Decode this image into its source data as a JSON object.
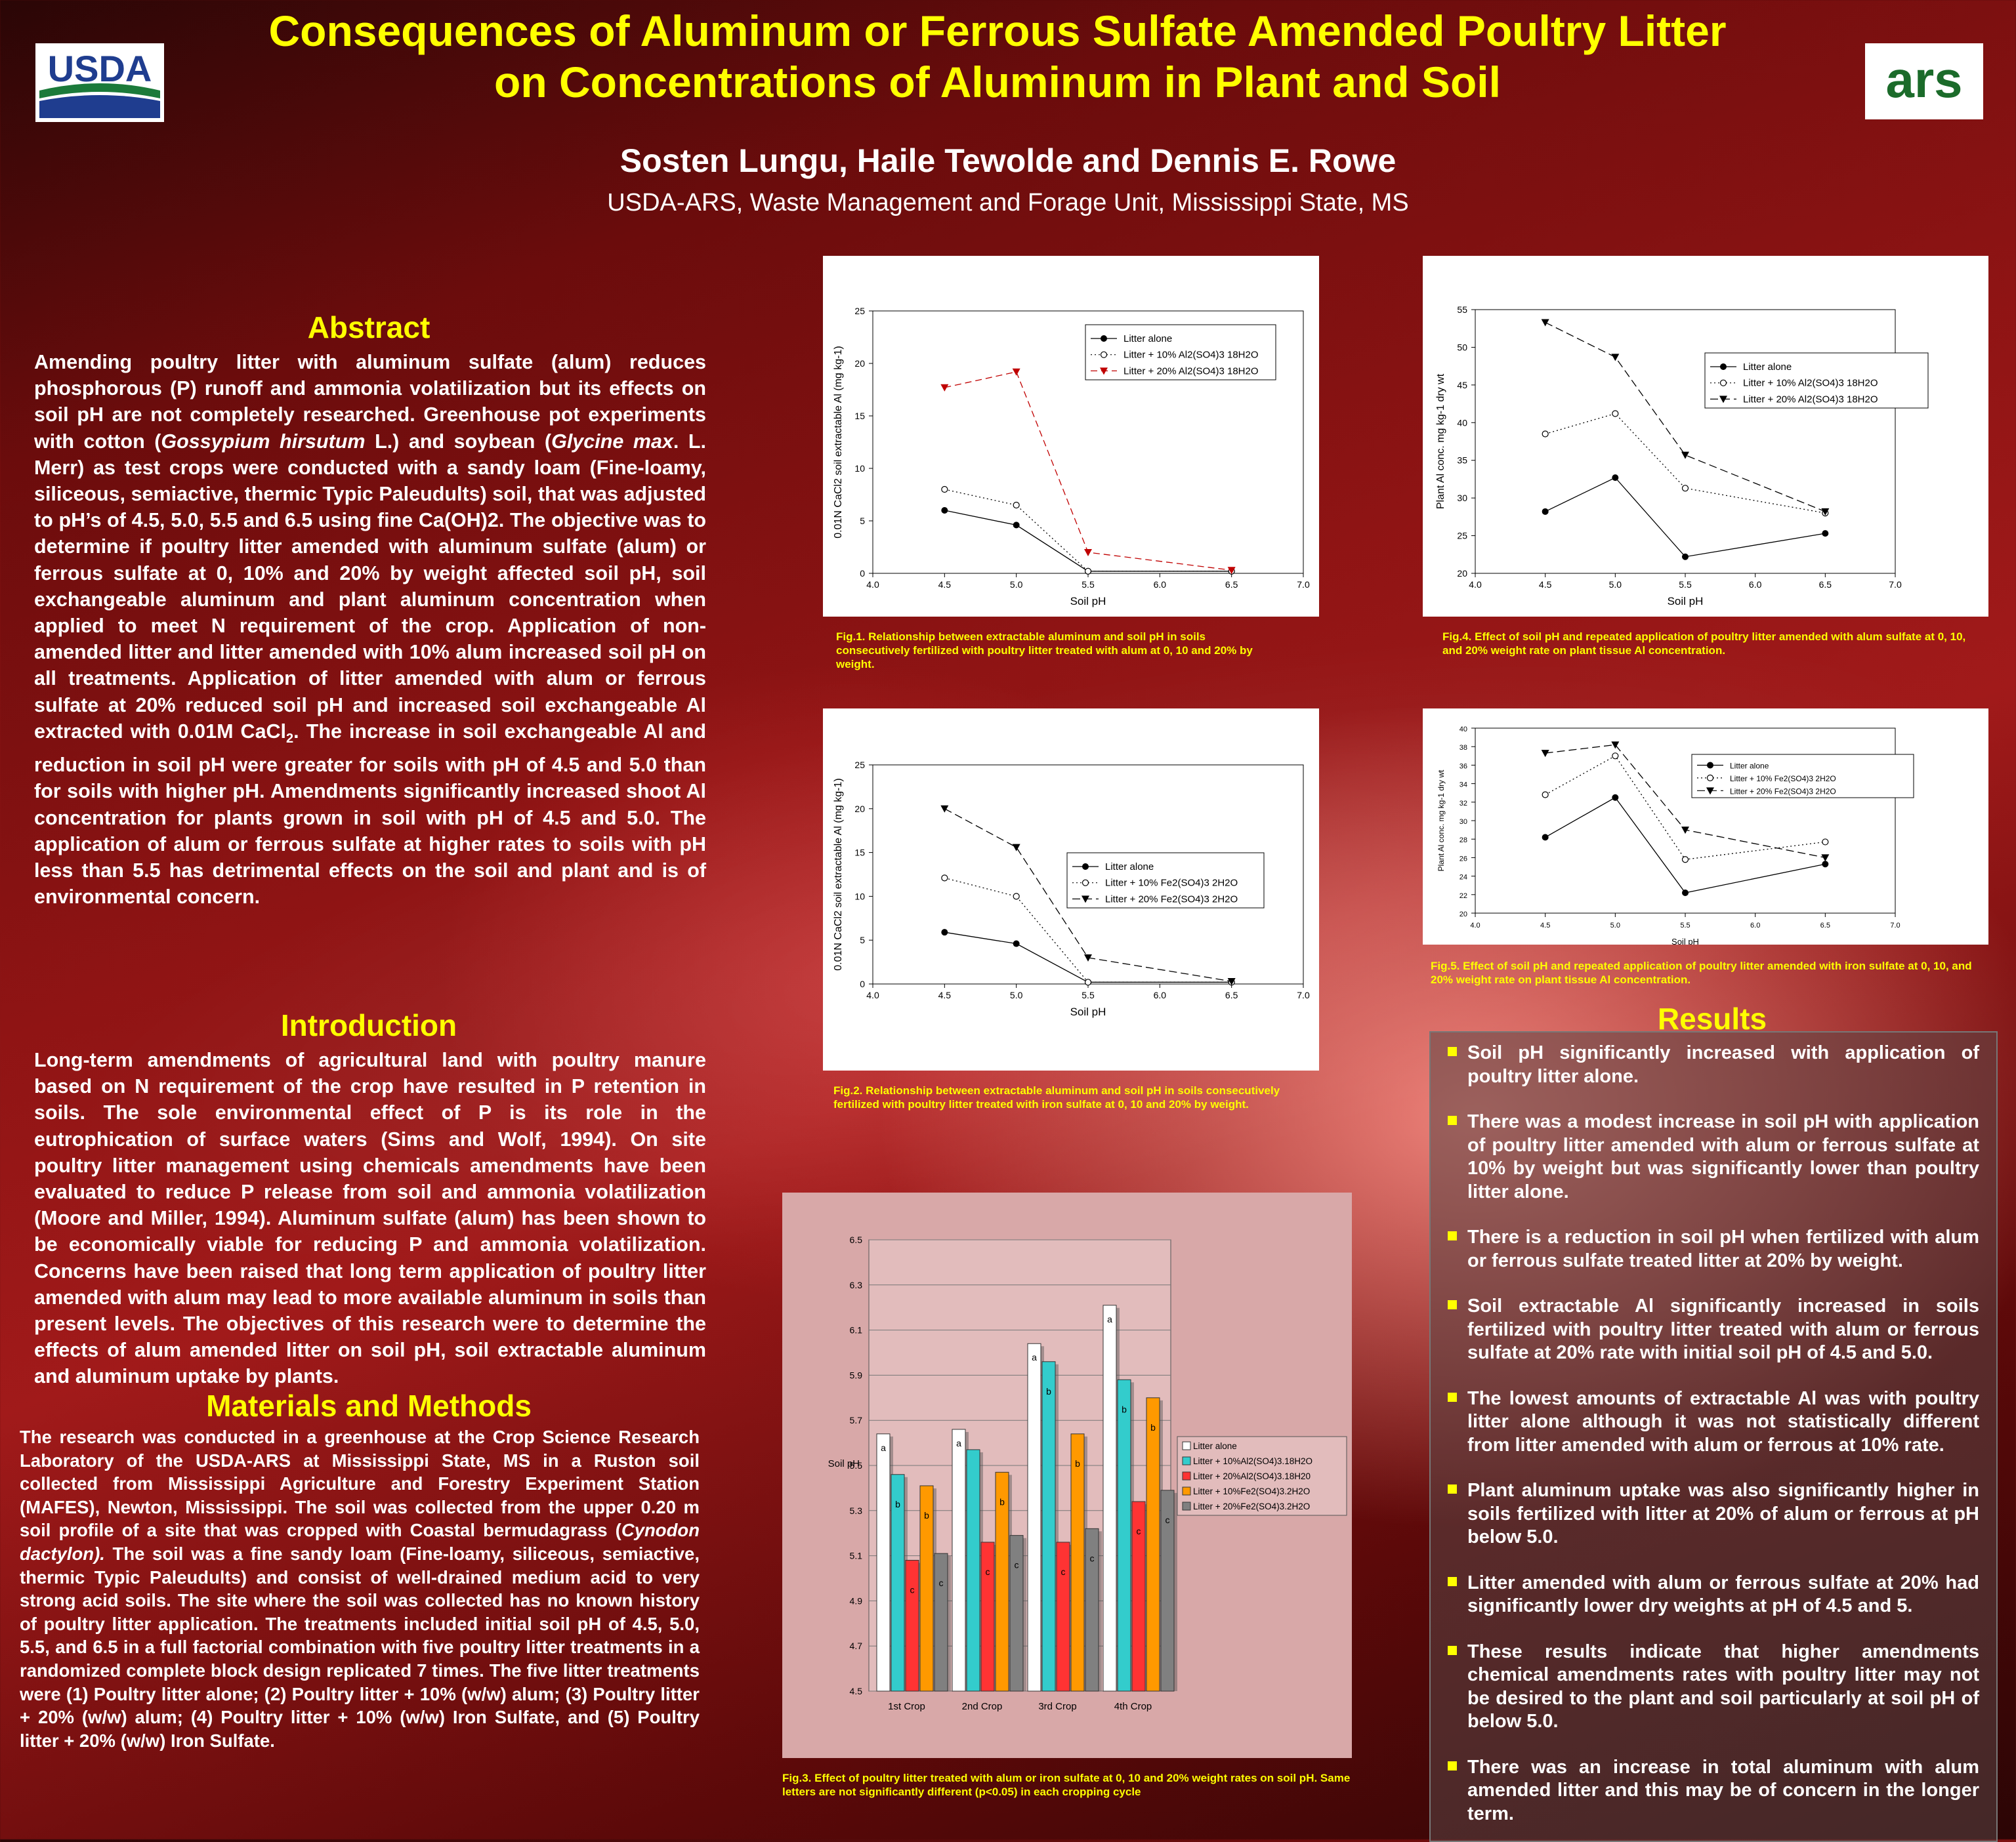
{
  "header": {
    "title_line1": "Consequences of Aluminum or Ferrous Sulfate Amended Poultry Litter",
    "title_line2": "on Concentrations of Aluminum in Plant and Soil",
    "authors": "Sosten Lungu, Haile Tewolde and Dennis E. Rowe",
    "affiliation": "USDA-ARS, Waste Management and Forage Unit, Mississippi State, MS",
    "left_logo_text": "USDA",
    "right_logo_text": "ars"
  },
  "abstract": {
    "heading": "Abstract",
    "p1": "Amending poultry litter with aluminum sulfate (alum) reduces phosphorous (P) runoff and ammonia volatilization but its effects on soil pH are not completely researched. Greenhouse pot experiments with cotton (",
    "gossypium": "Gossypium hirsutum",
    "p2": " L.) and soybean (",
    "glycine": "Glycine max",
    "p3": ". L. Merr) as test crops were conducted with a sandy loam (Fine-loamy, siliceous, semiactive, thermic Typic Paleudults) soil, that was adjusted to pH’s of 4.5, 5.0, 5.5 and 6.5 using fine Ca(OH)2. The objective was to determine if poultry litter amended with aluminum sulfate (alum) or ferrous sulfate at 0, 10% and 20% by weight affected soil pH, soil exchangeable aluminum and plant aluminum concentration when applied to meet N requirement of the crop. Application of non-amended litter and litter amended with 10% alum increased soil pH on all treatments. Application of litter amended with alum or ferrous sulfate at 20% reduced soil pH and increased soil exchangeable Al extracted with 0.01M CaCl",
    "sub2": "2",
    "p4": ". The increase in soil exchangeable Al and reduction in soil pH were greater for soils with pH of 4.5 and 5.0 than for soils with higher pH. Amendments significantly increased shoot Al concentration for plants grown in soil with pH of 4.5 and 5.0. The application of alum or ferrous sulfate at higher rates to soils with pH less than 5.5 has detrimental effects on the soil and plant and is of environmental concern."
  },
  "introduction": {
    "heading": "Introduction",
    "text": "Long-term amendments of agricultural land with poultry manure based on N requirement of the crop have resulted in P retention in soils. The sole environmental effect of P is its role in the eutrophication of surface waters (Sims and Wolf, 1994). On site poultry litter management using chemicals amendments have been evaluated to reduce P release from soil and ammonia volatilization (Moore and Miller, 1994). Aluminum sulfate (alum) has been shown to be economically viable for reducing P and ammonia volatilization.   Concerns have been raised that long term application of poultry litter amended with alum may lead to more available aluminum in soils than present levels. The objectives of this research were to determine the effects of alum amended litter on soil pH, soil extractable aluminum and aluminum uptake by plants."
  },
  "methods": {
    "heading": "Materials and Methods",
    "t1": "The research was conducted in a greenhouse at the Crop Science Research Laboratory of the USDA-ARS at Mississippi State, MS in a Ruston soil collected from Mississippi Agriculture and Forestry Experiment Station (MAFES), Newton, Mississippi. The soil was collected from the upper 0.20 m soil profile of a site that was cropped with Coastal bermudagrass (",
    "cynodon": "Cynodon dactylon).",
    "t2": " The soil was a fine sandy loam (Fine-loamy, siliceous, semiactive, thermic Typic Paleudults) and consist of well-drained medium acid to very strong acid soils. The site where the soil was collected has no known history of poultry litter application.  The treatments included initial soil pH of 4.5, 5.0, 5.5, and 6.5 in a full factorial combination with five poultry litter treatments in a randomized complete block design replicated 7 times. The five litter treatments were (1) Poultry litter alone; (2) Poultry litter + 10% (w/w) alum; (3) Poultry litter + 20% (w/w) alum; (4) Poultry litter + 10% (w/w) Iron Sulfate, and (5) Poultry litter + 20% (w/w) Iron Sulfate."
  },
  "results": {
    "heading": "Results",
    "items": [
      "Soil pH significantly increased with application of poultry litter alone.",
      "There was a modest increase in soil pH with application of poultry litter amended with alum or ferrous sulfate at 10% by weight but was significantly lower than poultry litter alone.",
      "There is a reduction in soil pH when fertilized with alum or  ferrous sulfate treated litter at 20% by weight.",
      "Soil extractable Al significantly increased in soils fertilized with poultry litter treated with alum or ferrous sulfate at 20% rate with initial soil pH of 4.5 and 5.0.",
      "The lowest amounts of extractable Al was with poultry litter alone although it was not statistically different from litter amended with alum or ferrous at 10% rate.",
      "Plant aluminum uptake was also significantly higher in soils fertilized with litter at 20% of alum or ferrous at pH below 5.0.",
      "Litter amended with alum or ferrous sulfate at 20% had significantly lower dry weights at pH of 4.5 and 5.",
      "These results indicate that higher amendments chemical amendments rates with poultry litter may not be desired to the plant and soil particularly at soil pH of below 5.0.",
      "There was an increase in total aluminum with alum amended litter and this may be of concern in the longer term."
    ]
  },
  "captions": {
    "fig1": "Fig.1. Relationship between extractable aluminum and soil pH in soils consecutively  fertilized with poultry litter treated with alum at 0, 10 and 20% by weight.",
    "fig2": "Fig.2. Relationship between extractable aluminum and soil pH in soils consecutively  fertilized with poultry litter treated with iron sulfate at 0, 10 and 20% by weight.",
    "fig3": "Fig.3. Effect of poultry litter treated with alum or iron sulfate at 0, 10 and 20% weight rates on soil pH. Same letters are not significantly different (p<0.05) in each cropping cycle",
    "fig4": "Fig.4. Effect of soil pH and repeated application of poultry litter amended with alum sulfate at 0, 10, and 20% weight rate on plant tissue Al concentration.",
    "fig5": "Fig.5. Effect of soil pH and repeated application of poultry litter amended with iron sulfate at 0, 10, and 20% weight rate on plant tissue Al concentration."
  },
  "chart_data": [
    {
      "id": "fig1",
      "type": "line",
      "xlabel": "Soil pH",
      "ylabel": "0.01N CaCl2 soil extractable Al (mg kg-1)",
      "xlim": [
        4.0,
        7.0
      ],
      "ylim": [
        0,
        25
      ],
      "xticks": [
        4.0,
        4.5,
        5.0,
        5.5,
        6.0,
        6.5,
        7.0
      ],
      "yticks": [
        0,
        5,
        10,
        15,
        20,
        25
      ],
      "x": [
        4.5,
        5.0,
        5.5,
        6.5
      ],
      "series": [
        {
          "name": "Litter alone",
          "values": [
            6.0,
            4.6,
            0.2,
            0.2
          ],
          "color": "#000000",
          "dash": "",
          "marker": "filled-circle"
        },
        {
          "name": "Litter + 10% Al2(SO4)3 18H2O",
          "values": [
            8.0,
            6.5,
            0.2,
            0.2
          ],
          "color": "#000000",
          "dash": "2,4",
          "marker": "open-circle"
        },
        {
          "name": "Litter + 20% Al2(SO4)3 18H2O",
          "values": [
            17.7,
            19.2,
            2.0,
            0.3
          ],
          "color": "#c00000",
          "dash": "10,6",
          "marker": "triangle"
        }
      ],
      "legend": "center-right",
      "grid": false
    },
    {
      "id": "fig2",
      "type": "line",
      "xlabel": "Soil pH",
      "ylabel": "0.01N CaCl2 soil extractable Al (mg kg-1)",
      "xlim": [
        4.0,
        7.0
      ],
      "ylim": [
        0,
        25
      ],
      "xticks": [
        4.0,
        4.5,
        5.0,
        5.5,
        6.0,
        6.5,
        7.0
      ],
      "yticks": [
        0,
        5,
        10,
        15,
        20,
        25
      ],
      "x": [
        4.5,
        5.0,
        5.5,
        6.5
      ],
      "series": [
        {
          "name": "Litter alone",
          "values": [
            5.9,
            4.6,
            0.2,
            0.2
          ],
          "color": "#000000",
          "dash": "",
          "marker": "filled-circle"
        },
        {
          "name": "Litter + 10% Fe2(SO4)3 2H2O",
          "values": [
            12.1,
            10.0,
            0.2,
            0.2
          ],
          "color": "#000000",
          "dash": "2,4",
          "marker": "open-circle"
        },
        {
          "name": "Litter + 20% Fe2(SO4)3 2H2O",
          "values": [
            20.0,
            15.6,
            3.0,
            0.3
          ],
          "color": "#000000",
          "dash": "12,6",
          "marker": "triangle"
        }
      ],
      "legend": "center-right",
      "grid": false
    },
    {
      "id": "fig4",
      "type": "line",
      "xlabel": "Soil pH",
      "ylabel": "Plant Al conc. mg kg-1 dry wt",
      "xlim": [
        4.0,
        7.0
      ],
      "ylim": [
        20,
        55
      ],
      "xticks": [
        4.0,
        4.5,
        5.0,
        5.5,
        6.0,
        6.5,
        7.0
      ],
      "yticks": [
        20,
        25,
        30,
        35,
        40,
        45,
        50,
        55
      ],
      "x": [
        4.5,
        5.0,
        5.5,
        6.5
      ],
      "series": [
        {
          "name": "Litter alone",
          "values": [
            28.2,
            32.7,
            22.2,
            25.3
          ],
          "color": "#000000",
          "dash": "",
          "marker": "filled-circle"
        },
        {
          "name": "Litter + 10% Al2(SO4)3 18H2O",
          "values": [
            38.5,
            41.2,
            31.3,
            28.0
          ],
          "color": "#000000",
          "dash": "2,4",
          "marker": "open-circle"
        },
        {
          "name": "Litter + 20% Al2(SO4)3 18H2O",
          "values": [
            53.3,
            48.7,
            35.7,
            28.2
          ],
          "color": "#000000",
          "dash": "12,6",
          "marker": "triangle"
        }
      ],
      "legend": "top-right",
      "grid": false
    },
    {
      "id": "fig5",
      "type": "line",
      "xlabel": "Soil pH",
      "ylabel": "Plant Al conc. mg kg-1 dry wt",
      "xlim": [
        4.0,
        7.0
      ],
      "ylim": [
        20,
        40
      ],
      "xticks": [
        4.0,
        4.5,
        5.0,
        5.5,
        6.0,
        6.5,
        7.0
      ],
      "yticks": [
        20,
        22,
        24,
        26,
        28,
        30,
        32,
        34,
        36,
        38,
        40
      ],
      "x": [
        4.5,
        5.0,
        5.5,
        6.5
      ],
      "series": [
        {
          "name": "Litter alone",
          "values": [
            28.2,
            32.5,
            22.2,
            25.3
          ],
          "color": "#000000",
          "dash": "",
          "marker": "filled-circle"
        },
        {
          "name": "Litter + 10% Fe2(SO4)3 2H2O",
          "values": [
            32.8,
            37.0,
            25.8,
            27.7
          ],
          "color": "#000000",
          "dash": "2,4",
          "marker": "open-circle"
        },
        {
          "name": "Litter + 20% Fe2(SO4)3 2H2O",
          "values": [
            37.3,
            38.2,
            29.0,
            26.0
          ],
          "color": "#000000",
          "dash": "12,6",
          "marker": "triangle"
        }
      ],
      "legend": "top-right",
      "grid": false
    },
    {
      "id": "fig3",
      "type": "bar",
      "ylabel": "Soil pH",
      "ylim": [
        4.5,
        6.5
      ],
      "yticks": [
        "4.5",
        "4.7",
        "4.9",
        "5.1",
        "5.3",
        "5.5",
        "5.7",
        "5.9",
        "6.1",
        "6.3",
        "6.5"
      ],
      "categories": [
        "1st Crop",
        "2nd Crop",
        "3rd Crop",
        "4th Crop"
      ],
      "series": [
        {
          "name": "Litter alone",
          "color": "#ffffff",
          "values": [
            5.64,
            5.66,
            6.04,
            6.21
          ],
          "letters": [
            "a",
            "a",
            "a",
            "a"
          ]
        },
        {
          "name": "Litter + 10%Al2(SO4)3.18H2O",
          "color": "#33cccc",
          "values": [
            5.46,
            5.57,
            5.96,
            5.88
          ],
          "letters": [
            "b",
            "",
            "b",
            "b"
          ]
        },
        {
          "name": "Litter + 20%Al2(SO4)3.18H20",
          "color": "#ff3333",
          "values": [
            5.08,
            5.16,
            5.16,
            5.34
          ],
          "letters": [
            "c",
            "c",
            "c",
            "c"
          ]
        },
        {
          "name": "Litter + 10%Fe2(SO4)3.2H2O",
          "color": "#ff9900",
          "values": [
            5.41,
            5.47,
            5.64,
            5.8
          ],
          "letters": [
            "b",
            "b",
            "b",
            "b"
          ]
        },
        {
          "name": "Litter + 20%Fe2(SO4)3.2H2O",
          "color": "#808080",
          "values": [
            5.11,
            5.19,
            5.22,
            5.39
          ],
          "letters": [
            "c",
            "c",
            "c",
            "c"
          ]
        }
      ],
      "legend": "right",
      "grid": "horizontal"
    }
  ]
}
